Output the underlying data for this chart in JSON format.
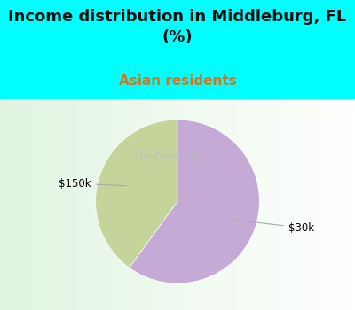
{
  "title": "Income distribution in Middleburg, FL\n(%)",
  "subtitle": "Asian residents",
  "title_fontsize": 13,
  "subtitle_fontsize": 11,
  "title_color": "#111111",
  "subtitle_color": "#cc7722",
  "background_color": "#00ffff",
  "chart_panel_color": "#f0f5ee",
  "slices": [
    0.4,
    0.6
  ],
  "labels": [
    "$150k",
    "$30k"
  ],
  "slice_colors": [
    "#c5d49a",
    "#c5aad5"
  ],
  "startangle": 90,
  "watermark": "City-Data.com"
}
